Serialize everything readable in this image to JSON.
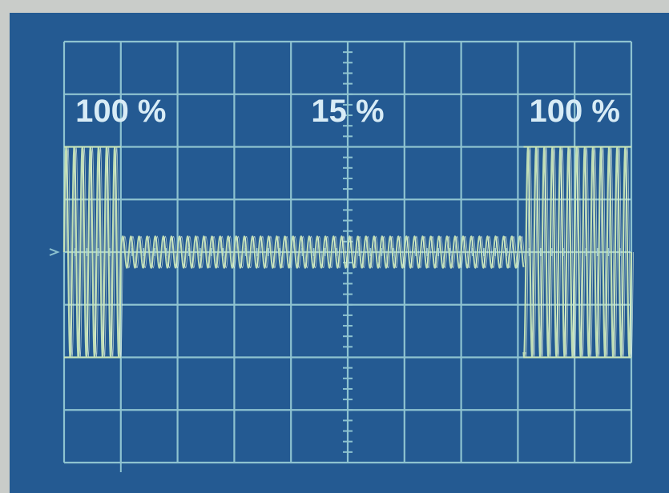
{
  "chart_data": {
    "type": "line",
    "title": "",
    "xlabel": "",
    "ylabel": "",
    "grid": true,
    "grid_divisions": {
      "x": 10,
      "y": 8
    },
    "colors": {
      "screen": "#245a92",
      "grid": "#8ec3d0",
      "trace": "#c9e6b8",
      "annotation_text": "#d8ecf6",
      "bezel": "#c9ccc9"
    },
    "annotations": [
      {
        "text": "100 %",
        "division": 1
      },
      {
        "text": "15 %",
        "division": 5
      },
      {
        "text": "100 %",
        "division": 9
      }
    ],
    "series": [
      {
        "segments": [
          {
            "x_range": [
              0.0,
              1.0
            ],
            "amplitude_divisions": 2.0,
            "amplitude_percent": 100
          },
          {
            "x_range": [
              1.0,
              8.1
            ],
            "amplitude_divisions": 0.3,
            "amplitude_percent": 15
          },
          {
            "x_range": [
              8.1,
              10.0
            ],
            "amplitude_divisions": 2.0,
            "amplitude_percent": 100
          }
        ],
        "cycles_per_division": 7
      }
    ]
  }
}
